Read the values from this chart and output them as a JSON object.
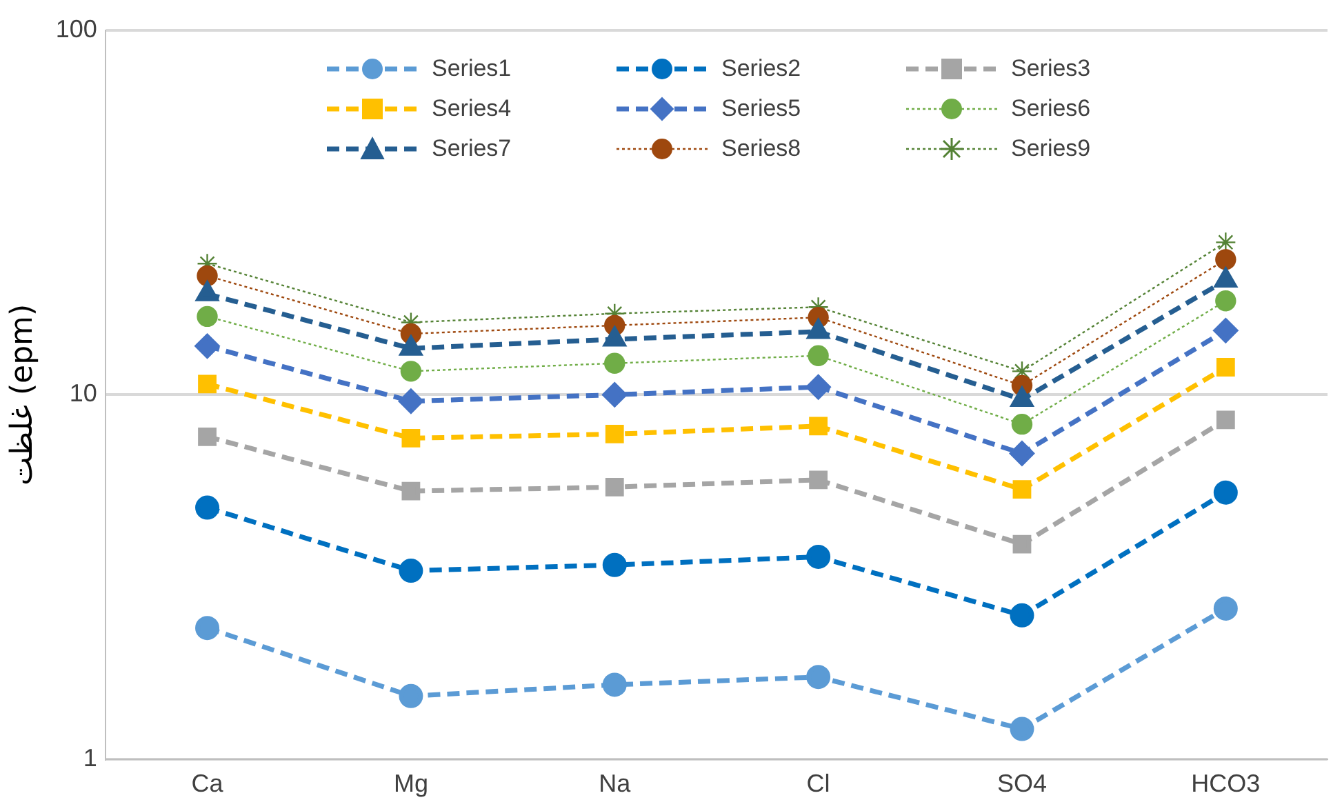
{
  "chart_data": {
    "type": "line",
    "ylabel": "غلظت (epm)",
    "categories": [
      "Ca",
      "Mg",
      "Na",
      "Cl",
      "SO4",
      "HCO3"
    ],
    "series": [
      {
        "name": "Series1",
        "color": "#5b9bd5",
        "marker": "circle",
        "line_style": "dashed",
        "values": [
          2.29,
          1.49,
          1.6,
          1.68,
          1.21,
          2.59
        ]
      },
      {
        "name": "Series2",
        "color": "#0070c0",
        "marker": "circle",
        "line_style": "dashed",
        "values": [
          4.9,
          3.29,
          3.41,
          3.59,
          2.48,
          5.39
        ]
      },
      {
        "name": "Series3",
        "color": "#a5a5a5",
        "marker": "square",
        "line_style": "dashed",
        "values": [
          7.67,
          5.44,
          5.58,
          5.84,
          3.89,
          8.53
        ]
      },
      {
        "name": "Series4",
        "color": "#ffc000",
        "marker": "square",
        "line_style": "dashed",
        "values": [
          10.7,
          7.6,
          7.8,
          8.2,
          5.5,
          11.9
        ]
      },
      {
        "name": "Series5",
        "color": "#4472c4",
        "marker": "diamond",
        "line_style": "dashed",
        "values": [
          13.6,
          9.6,
          10.0,
          10.5,
          6.9,
          15.0
        ]
      },
      {
        "name": "Series6",
        "color": "#70ad47",
        "marker": "circle",
        "line_style": "dotted",
        "values": [
          16.4,
          11.6,
          12.2,
          12.8,
          8.3,
          18.1
        ]
      },
      {
        "name": "Series7",
        "color": "#255e91",
        "marker": "triangle",
        "line_style": "dashed",
        "values": [
          18.9,
          13.4,
          14.2,
          14.9,
          9.7,
          20.6
        ]
      },
      {
        "name": "Series8",
        "color": "#9e480e",
        "marker": "circle",
        "line_style": "dotted",
        "values": [
          21.2,
          14.7,
          15.5,
          16.3,
          10.6,
          23.5
        ]
      },
      {
        "name": "Series9",
        "color": "#548235",
        "marker": "cross",
        "line_style": "dotted",
        "values": [
          22.9,
          15.8,
          16.7,
          17.4,
          11.6,
          26.2
        ]
      }
    ],
    "log": "y",
    "ylim": [
      1,
      100
    ],
    "yticks": [
      1,
      10,
      100
    ],
    "grid": "y",
    "legend": "top"
  }
}
